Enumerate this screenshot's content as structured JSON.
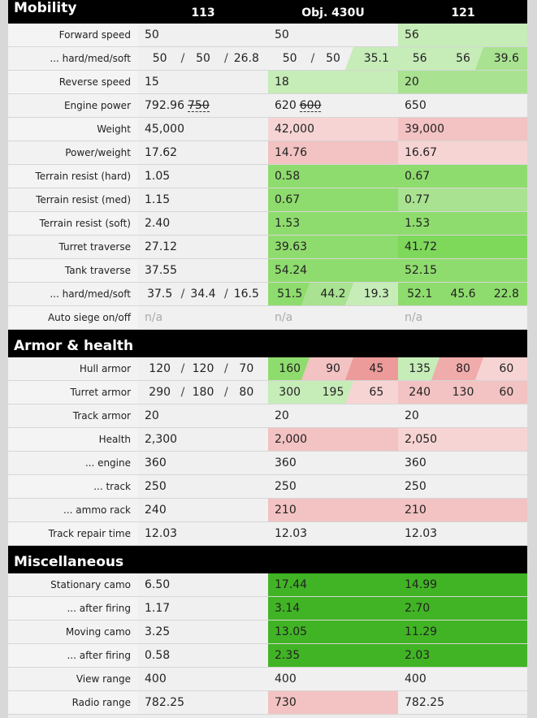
{
  "columns": [
    "113",
    "Obj. 430U",
    "121"
  ],
  "sections": [
    {
      "title": "Mobility",
      "rows": [
        {
          "label": "Forward speed",
          "cells": [
            {
              "v": "50"
            },
            {
              "v": "50"
            },
            {
              "v": "56",
              "c": "g-light"
            }
          ]
        },
        {
          "label": "... hard/med/soft",
          "cells": [
            {
              "t": [
                "50",
                "50",
                "26.8"
              ]
            },
            {
              "t": [
                "50",
                "50",
                "35.1"
              ],
              "tc": [
                "",
                "",
                "g-light"
              ]
            },
            {
              "t": [
                "56",
                "56",
                "39.6"
              ],
              "tc": [
                "g-light",
                "g-light",
                "g-mid"
              ]
            }
          ]
        },
        {
          "label": "Reverse speed",
          "cells": [
            {
              "v": "15"
            },
            {
              "v": "18",
              "c": "g-light"
            },
            {
              "v": "20",
              "c": "g-mid"
            }
          ]
        },
        {
          "label": "Engine power",
          "cells": [
            {
              "v": "792.96",
              "s": "750"
            },
            {
              "v": "620",
              "s": "600"
            },
            {
              "v": "650"
            }
          ]
        },
        {
          "label": "Weight",
          "cells": [
            {
              "v": "45,000"
            },
            {
              "v": "42,000",
              "c": "r-light"
            },
            {
              "v": "39,000",
              "c": "r"
            }
          ]
        },
        {
          "label": "Power/weight",
          "cells": [
            {
              "v": "17.62"
            },
            {
              "v": "14.76",
              "c": "r"
            },
            {
              "v": "16.67",
              "c": "r-light"
            }
          ]
        },
        {
          "label": "Terrain resist (hard)",
          "cells": [
            {
              "v": "1.05"
            },
            {
              "v": "0.58",
              "c": "g"
            },
            {
              "v": "0.67",
              "c": "g"
            }
          ]
        },
        {
          "label": "Terrain resist (med)",
          "cells": [
            {
              "v": "1.15"
            },
            {
              "v": "0.67",
              "c": "g"
            },
            {
              "v": "0.77",
              "c": "g-mid"
            }
          ]
        },
        {
          "label": "Terrain resist (soft)",
          "cells": [
            {
              "v": "2.40"
            },
            {
              "v": "1.53",
              "c": "g"
            },
            {
              "v": "1.53",
              "c": "g"
            }
          ]
        },
        {
          "label": "Turret traverse",
          "cells": [
            {
              "v": "27.12"
            },
            {
              "v": "39.63",
              "c": "g"
            },
            {
              "v": "41.72",
              "c": "g-strong"
            }
          ]
        },
        {
          "label": "Tank traverse",
          "cells": [
            {
              "v": "37.55"
            },
            {
              "v": "54.24",
              "c": "g"
            },
            {
              "v": "52.15",
              "c": "g"
            }
          ]
        },
        {
          "label": "... hard/med/soft",
          "cells": [
            {
              "t": [
                "37.5",
                "34.4",
                "16.5"
              ]
            },
            {
              "t": [
                "51.5",
                "44.2",
                "19.3"
              ],
              "tc": [
                "g",
                "g-mid",
                "g-light"
              ]
            },
            {
              "t": [
                "52.1",
                "45.6",
                "22.8"
              ],
              "tc": [
                "g",
                "g",
                "g"
              ]
            }
          ]
        },
        {
          "label": "Auto siege on/off",
          "cells": [
            {
              "v": "n/a",
              "na": true
            },
            {
              "v": "n/a",
              "na": true
            },
            {
              "v": "n/a",
              "na": true
            }
          ]
        }
      ]
    },
    {
      "title": "Armor & health",
      "rows": [
        {
          "label": "Hull armor",
          "cells": [
            {
              "t": [
                "120",
                "120",
                "70"
              ]
            },
            {
              "t": [
                "160",
                "90",
                "45"
              ],
              "tc": [
                "g",
                "r",
                "r-strong"
              ]
            },
            {
              "t": [
                "135",
                "80",
                "60"
              ],
              "tc": [
                "g-light",
                "r-mid",
                "r-light"
              ]
            }
          ]
        },
        {
          "label": "Turret armor",
          "cells": [
            {
              "t": [
                "290",
                "180",
                "80"
              ]
            },
            {
              "t": [
                "300",
                "195",
                "65"
              ],
              "tc": [
                "g-light",
                "g-light",
                "r-light"
              ]
            },
            {
              "t": [
                "240",
                "130",
                "60"
              ],
              "tc": [
                "r",
                "r",
                "r"
              ]
            }
          ]
        },
        {
          "label": "Track armor",
          "cells": [
            {
              "v": "20"
            },
            {
              "v": "20"
            },
            {
              "v": "20"
            }
          ]
        },
        {
          "label": "Health",
          "cells": [
            {
              "v": "2,300"
            },
            {
              "v": "2,000",
              "c": "r"
            },
            {
              "v": "2,050",
              "c": "r-light"
            }
          ]
        },
        {
          "label": "... engine",
          "cells": [
            {
              "v": "360"
            },
            {
              "v": "360"
            },
            {
              "v": "360"
            }
          ]
        },
        {
          "label": "... track",
          "cells": [
            {
              "v": "250"
            },
            {
              "v": "250"
            },
            {
              "v": "250"
            }
          ]
        },
        {
          "label": "... ammo rack",
          "cells": [
            {
              "v": "240"
            },
            {
              "v": "210",
              "c": "r"
            },
            {
              "v": "210",
              "c": "r"
            }
          ]
        },
        {
          "label": "Track repair time",
          "cells": [
            {
              "v": "12.03"
            },
            {
              "v": "12.03"
            },
            {
              "v": "12.03"
            }
          ]
        }
      ]
    },
    {
      "title": "Miscellaneous",
      "rows": [
        {
          "label": "Stationary camo",
          "cells": [
            {
              "v": "6.50"
            },
            {
              "v": "17.44",
              "c": "g-dark"
            },
            {
              "v": "14.99",
              "c": "g-dark"
            }
          ]
        },
        {
          "label": "... after firing",
          "cells": [
            {
              "v": "1.17"
            },
            {
              "v": "3.14",
              "c": "g-dark"
            },
            {
              "v": "2.70",
              "c": "g-dark"
            }
          ]
        },
        {
          "label": "Moving camo",
          "cells": [
            {
              "v": "3.25"
            },
            {
              "v": "13.05",
              "c": "g-dark"
            },
            {
              "v": "11.29",
              "c": "g-dark"
            }
          ]
        },
        {
          "label": "... after firing",
          "cells": [
            {
              "v": "0.58"
            },
            {
              "v": "2.35",
              "c": "g-dark"
            },
            {
              "v": "2.03",
              "c": "g-dark"
            }
          ]
        },
        {
          "label": "View range",
          "cells": [
            {
              "v": "400"
            },
            {
              "v": "400"
            },
            {
              "v": "400"
            }
          ]
        },
        {
          "label": "Radio range",
          "cells": [
            {
              "v": "782.25"
            },
            {
              "v": "730",
              "c": "r"
            },
            {
              "v": "782.25"
            }
          ]
        }
      ]
    }
  ]
}
